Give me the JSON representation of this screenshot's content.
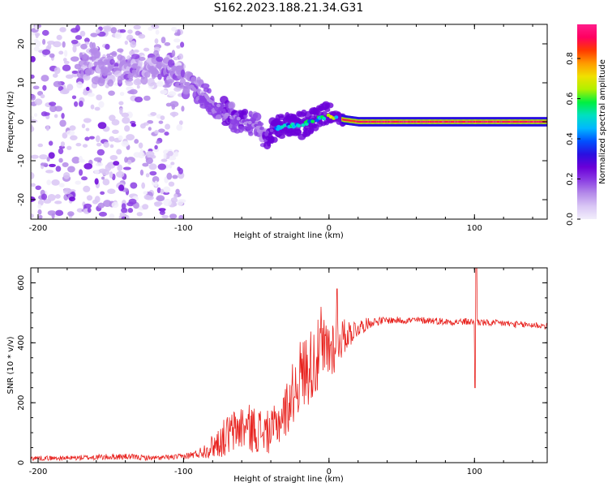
{
  "figure": {
    "title": "S162.2023.188.21.34.G31"
  },
  "colors": {
    "line": "#e8231f",
    "axis": "#000000",
    "colormap": [
      "#f2eefb",
      "#d9c6f5",
      "#b48ae9",
      "#8b3ee3",
      "#6a00d8",
      "#2a10e0",
      "#0050ff",
      "#00b8ff",
      "#00e0c0",
      "#00f040",
      "#b0f000",
      "#f0e000",
      "#ff9a00",
      "#ff3a00",
      "#ff0060",
      "#ff1c8a"
    ]
  },
  "chart_data": [
    {
      "type": "heatmap",
      "title": "S162.2023.188.21.34.G31",
      "xlabel": "Height of straight line (km)",
      "ylabel": "Frequency (Hz)",
      "xlim": [
        -205,
        150
      ],
      "ylim": [
        -25,
        25
      ],
      "xticks": [
        -200,
        -100,
        0,
        100
      ],
      "yticks": [
        -20,
        -10,
        0,
        10,
        20
      ],
      "colorbar": {
        "label": "Normalized spectral amplitude",
        "range": [
          0,
          0.97
        ],
        "ticks": [
          0.0,
          0.2,
          0.4,
          0.6,
          0.8
        ]
      },
      "ridge": {
        "description_points_x": [
          -115,
          -100,
          -90,
          -80,
          -70,
          -60,
          -50,
          -45,
          -40,
          -30,
          -20,
          -10,
          0,
          10,
          20,
          40,
          60,
          80,
          100,
          120,
          150
        ],
        "frequency_hz": [
          14,
          10,
          8,
          5,
          2,
          0,
          -1,
          -4,
          -2,
          -1,
          -1,
          0.5,
          1.5,
          0.5,
          0,
          0,
          0,
          0,
          0,
          0,
          0
        ],
        "peak_amplitude": [
          0.1,
          0.12,
          0.15,
          0.18,
          0.2,
          0.2,
          0.18,
          0.15,
          0.35,
          0.55,
          0.6,
          0.6,
          0.7,
          0.9,
          0.95,
          0.95,
          0.95,
          0.95,
          0.95,
          0.95,
          0.95
        ]
      }
    },
    {
      "type": "line",
      "xlabel": "Height of straight line (km)",
      "ylabel": "SNR (10 * v/v)",
      "xlim": [
        -205,
        150
      ],
      "ylim": [
        0,
        650
      ],
      "xticks": [
        -200,
        -100,
        0,
        100
      ],
      "yticks": [
        0,
        200,
        400,
        600
      ],
      "series": [
        {
          "x": [
            -205,
            -180,
            -160,
            -140,
            -120,
            -100,
            -90,
            -80,
            -70,
            -60,
            -50,
            -40,
            -30,
            -20,
            -10,
            0,
            10,
            20,
            30,
            40,
            50,
            60,
            70,
            80,
            90,
            100,
            110,
            120,
            130,
            140,
            150
          ],
          "values": [
            15,
            15,
            18,
            20,
            15,
            20,
            30,
            55,
            90,
            120,
            110,
            100,
            170,
            290,
            340,
            380,
            420,
            450,
            470,
            475,
            475,
            475,
            475,
            470,
            470,
            470,
            465,
            465,
            460,
            460,
            455
          ],
          "noise": [
            8,
            8,
            10,
            10,
            8,
            10,
            15,
            40,
            70,
            80,
            80,
            70,
            90,
            120,
            130,
            120,
            60,
            30,
            15,
            12,
            12,
            12,
            12,
            12,
            12,
            12,
            12,
            12,
            12,
            12,
            12
          ]
        }
      ]
    }
  ]
}
